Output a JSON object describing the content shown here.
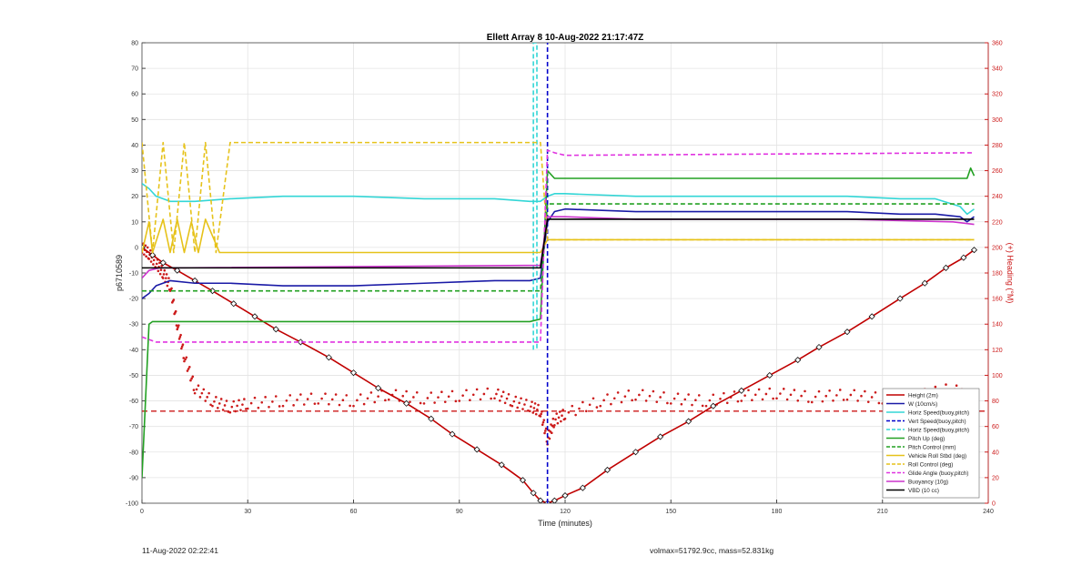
{
  "footer": {
    "timestamp": "11-Aug-2022 02:22:41",
    "mass_info": "volmax=51792.9cc, mass=52.831kg"
  },
  "chart_data": {
    "type": "line",
    "title": "Ellett Array 8 10-Aug-2022 21:17:47Z",
    "xlabel": "Time (minutes)",
    "ylabel": "p6710589",
    "ylabel_right": "(+) Heading (°M)",
    "xlim": [
      0,
      240
    ],
    "ylim": [
      -100,
      80
    ],
    "ylim_right": [
      0,
      360
    ],
    "x_ticks": [
      0,
      30,
      60,
      90,
      120,
      150,
      180,
      210,
      240
    ],
    "y_ticks": [
      -100,
      -90,
      -80,
      -70,
      -60,
      -50,
      -40,
      -30,
      -20,
      -10,
      0,
      10,
      20,
      30,
      40,
      50,
      60,
      70,
      80
    ],
    "y_right_ticks": [
      0,
      20,
      40,
      60,
      80,
      100,
      120,
      140,
      160,
      180,
      200,
      220,
      240,
      260,
      280,
      300,
      320,
      340,
      360
    ],
    "grid": true,
    "legend_position": "bottom-right",
    "colors": {
      "height": "#c00000",
      "w": "#1a1aa6",
      "horiz_speed": "#33d6d6",
      "vert_speed": "#0000cc",
      "pitch": "#22a022",
      "roll": "#e6c21a",
      "glide": "#e033e0",
      "buoyancy": "#cc33cc",
      "vbd": "#000000",
      "heading": "#cc1a1a",
      "right_axis": "#cc1a1a"
    },
    "series": [
      {
        "name": "Height (2m)",
        "color": "#c00000",
        "style": "solid-marker",
        "x": [
          0,
          3,
          6,
          10,
          15,
          20,
          26,
          32,
          38,
          45,
          53,
          60,
          67,
          75,
          82,
          88,
          95,
          102,
          108,
          111,
          113,
          115,
          117,
          120,
          125,
          132,
          140,
          147,
          155,
          162,
          170,
          178,
          186,
          192,
          200,
          207,
          215,
          222,
          228,
          233,
          236
        ],
        "y": [
          0,
          -3,
          -6,
          -9,
          -13,
          -17,
          -22,
          -27,
          -32,
          -37,
          -43,
          -49,
          -55,
          -61,
          -67,
          -73,
          -79,
          -85,
          -91,
          -96,
          -99,
          -100,
          -99,
          -97,
          -94,
          -87,
          -80,
          -74,
          -68,
          -62,
          -56,
          -50,
          -44,
          -39,
          -33,
          -27,
          -20,
          -14,
          -8,
          -4,
          -1
        ]
      },
      {
        "name": "W (10cm/s)",
        "color": "#1a1aa6",
        "style": "solid",
        "x": [
          0,
          2,
          4,
          8,
          15,
          25,
          40,
          60,
          80,
          100,
          110,
          113,
          115,
          117,
          120,
          140,
          160,
          180,
          200,
          215,
          225,
          232,
          234,
          236
        ],
        "y": [
          -20,
          -18,
          -15,
          -13,
          -14,
          -14,
          -15,
          -15,
          -14,
          -13,
          -13,
          -12,
          10,
          14,
          15,
          14,
          14,
          14,
          14,
          13,
          13,
          12,
          10,
          12
        ]
      },
      {
        "name": "Horiz Speed(buoy,pitch)",
        "color": "#33d6d6",
        "style": "solid",
        "x": [
          0,
          2,
          4,
          8,
          15,
          25,
          40,
          60,
          80,
          100,
          110,
          113,
          115,
          117,
          120,
          140,
          160,
          180,
          200,
          215,
          225,
          232,
          234,
          236
        ],
        "y": [
          25,
          23,
          20,
          18,
          18,
          19,
          20,
          20,
          19,
          19,
          18,
          18,
          20,
          21,
          21,
          20,
          20,
          20,
          20,
          19,
          19,
          16,
          13,
          15
        ]
      },
      {
        "name": "Vert Speed(buoy,pitch)",
        "color": "#0000cc",
        "style": "dashed",
        "x": [
          115,
          115
        ],
        "y": [
          -100,
          80
        ]
      },
      {
        "name": "Horiz Speed(buoy,pitch)",
        "color": "#33d6d6",
        "style": "dashed",
        "x": [
          111,
          111,
          112,
          112
        ],
        "y": [
          -40,
          80,
          80,
          -40
        ]
      },
      {
        "name": "Pitch Up (deg)",
        "color": "#22a022",
        "style": "solid",
        "x": [
          0,
          1,
          2,
          3,
          5,
          10,
          20,
          40,
          60,
          80,
          100,
          110,
          113,
          115,
          117,
          120,
          140,
          160,
          180,
          200,
          220,
          230,
          234,
          235,
          236
        ],
        "y": [
          -90,
          -60,
          -30,
          -29,
          -29,
          -29,
          -29,
          -29,
          -29,
          -29,
          -29,
          -29,
          -28,
          30,
          27,
          27,
          27,
          27,
          27,
          27,
          27,
          27,
          27,
          31,
          28
        ]
      },
      {
        "name": "Pitch Control (mm)",
        "color": "#22a022",
        "style": "dashed",
        "x": [
          0,
          2,
          4,
          8,
          113,
          115,
          120,
          236
        ],
        "y": [
          -17,
          -17,
          -17,
          -17,
          -17,
          17,
          17,
          17
        ]
      },
      {
        "name": "Vehicle Roll Stbd (deg)",
        "color": "#e6c21a",
        "style": "solid",
        "x": [
          0,
          2,
          3,
          6,
          8,
          10,
          12,
          14,
          16,
          18,
          22,
          25,
          30,
          40,
          50,
          60,
          70,
          80,
          90,
          100,
          110,
          113,
          115,
          120,
          236
        ],
        "y": [
          -2,
          10,
          -2,
          11,
          -2,
          11,
          -2,
          10,
          -2,
          11,
          -2,
          -2,
          -2,
          -2,
          -2,
          -2,
          -2,
          -2,
          -2,
          -2,
          -2,
          -2,
          3,
          3,
          3
        ]
      },
      {
        "name": "Roll Control (deg)",
        "color": "#e6c21a",
        "style": "dashed",
        "x": [
          0,
          3,
          6,
          9,
          12,
          15,
          18,
          21,
          25,
          113,
          115,
          236
        ],
        "y": [
          41,
          -2,
          41,
          -2,
          41,
          -2,
          41,
          -2,
          41,
          41,
          3,
          3
        ]
      },
      {
        "name": "Glide Angle (buoy,pitch)",
        "color": "#e033e0",
        "style": "dashed",
        "x": [
          0,
          2,
          4,
          8,
          113,
          115,
          117,
          120,
          236
        ],
        "y": [
          -35,
          -36,
          -37,
          -37,
          -37,
          38,
          37,
          36,
          37
        ]
      },
      {
        "name": "Buoyancy (10g)",
        "color": "#cc33cc",
        "style": "solid",
        "x": [
          0,
          2,
          5,
          10,
          113,
          115,
          117,
          120,
          140,
          200,
          230,
          236
        ],
        "y": [
          -12,
          -9,
          -8,
          -8,
          -7,
          12,
          12,
          12,
          11,
          11,
          10,
          9
        ]
      },
      {
        "name": "VBD (10 cc)",
        "color": "#000000",
        "style": "solid",
        "x": [
          0,
          2,
          5,
          10,
          113,
          115,
          117,
          120,
          236
        ],
        "y": [
          -8,
          -8,
          -8,
          -8,
          -8,
          11,
          11,
          11,
          11
        ]
      }
    ],
    "heading_series": {
      "name": "Heading (°M)",
      "axis": "right",
      "x": [
        0,
        2,
        4,
        6,
        8,
        10,
        12,
        15,
        20,
        25,
        30,
        40,
        50,
        60,
        70,
        80,
        90,
        100,
        105,
        110,
        113,
        115,
        117,
        120,
        130,
        140,
        150,
        160,
        170,
        180,
        190,
        200,
        210,
        220,
        230,
        235,
        236
      ],
      "y": [
        200,
        195,
        188,
        180,
        170,
        140,
        115,
        90,
        80,
        75,
        78,
        80,
        82,
        80,
        85,
        82,
        84,
        86,
        80,
        76,
        72,
        50,
        65,
        70,
        80,
        85,
        82,
        80,
        84,
        86,
        83,
        85,
        82,
        84,
        90,
        80,
        82
      ]
    },
    "reference_lines": [
      {
        "axis": "right",
        "y": 72,
        "color": "#cc1a1a",
        "style": "dashed"
      }
    ],
    "legend_entries": [
      {
        "label": "Height (2m)",
        "color": "#c00000",
        "style": "solid"
      },
      {
        "label": "W (10cm/s)",
        "color": "#1a1aa6",
        "style": "solid"
      },
      {
        "label": "Horiz Speed(buoy,pitch)",
        "color": "#33d6d6",
        "style": "solid"
      },
      {
        "label": "Vert Speed(buoy,pitch)",
        "color": "#0000cc",
        "style": "dashed"
      },
      {
        "label": "Horiz Speed(buoy,pitch)",
        "color": "#33d6d6",
        "style": "dashed"
      },
      {
        "label": "Pitch Up (deg)",
        "color": "#22a022",
        "style": "solid"
      },
      {
        "label": "Pitch Control (mm)",
        "color": "#22a022",
        "style": "dashed"
      },
      {
        "label": "Vehicle Roll Stbd (deg)",
        "color": "#e6c21a",
        "style": "solid"
      },
      {
        "label": "Roll Control (deg)",
        "color": "#e6c21a",
        "style": "dashed"
      },
      {
        "label": "Glide Angle (buoy,pitch)",
        "color": "#e033e0",
        "style": "dashed"
      },
      {
        "label": "Buoyancy (10g)",
        "color": "#cc33cc",
        "style": "solid"
      },
      {
        "label": "VBD (10 cc)",
        "color": "#000000",
        "style": "solid"
      }
    ]
  }
}
